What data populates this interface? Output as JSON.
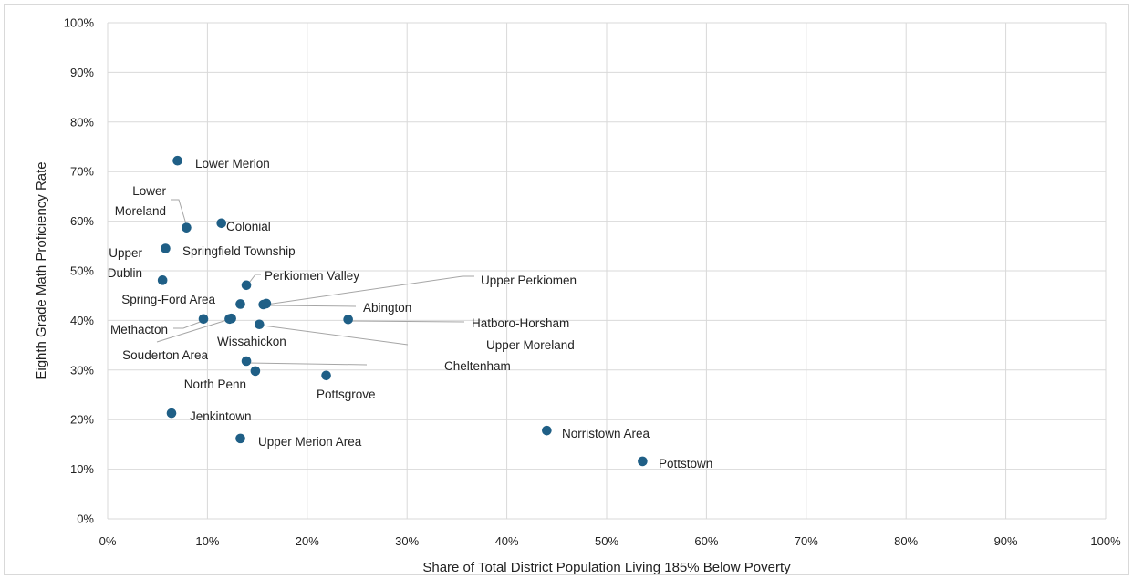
{
  "chart_data": {
    "type": "scatter",
    "xlabel": "Share of Total District Population Living 185% Below Poverty",
    "ylabel": "Eighth Grade Math Proficiency Rate",
    "xlim": [
      0,
      100
    ],
    "ylim": [
      0,
      100
    ],
    "x_ticks": [
      "0%",
      "10%",
      "20%",
      "30%",
      "40%",
      "50%",
      "60%",
      "70%",
      "80%",
      "90%",
      "100%"
    ],
    "y_ticks": [
      "0%",
      "10%",
      "20%",
      "30%",
      "40%",
      "50%",
      "60%",
      "70%",
      "80%",
      "90%",
      "100%"
    ],
    "grid": true,
    "legend": "none",
    "point_color": "#1f5f86",
    "points": [
      {
        "label": "Lower Merion",
        "x": 7.0,
        "y": 72.2
      },
      {
        "label": "Lower Moreland",
        "x": 7.9,
        "y": 58.7
      },
      {
        "label": "Colonial",
        "x": 11.4,
        "y": 59.6
      },
      {
        "label": "Springfield Township",
        "x": 5.8,
        "y": 54.5
      },
      {
        "label": "Upper Dublin",
        "x": 5.5,
        "y": 48.1
      },
      {
        "label": "Perkiomen Valley",
        "x": 13.9,
        "y": 47.1
      },
      {
        "label": "Spring-Ford Area",
        "x": 13.3,
        "y": 43.3
      },
      {
        "label": "Upper Perkiomen",
        "x": 15.6,
        "y": 43.2
      },
      {
        "label": "Abington",
        "x": 15.9,
        "y": 43.4
      },
      {
        "label": "Methacton",
        "x": 9.6,
        "y": 40.3
      },
      {
        "label": "Souderton Area",
        "x": 12.2,
        "y": 40.3
      },
      {
        "label": "Hatboro-Horsham",
        "x": 24.1,
        "y": 40.2
      },
      {
        "label": "Upper Moreland",
        "x": 15.2,
        "y": 39.2
      },
      {
        "label": "Wissahickon",
        "x": 12.4,
        "y": 40.4
      },
      {
        "label": "Cheltenham",
        "x": 13.9,
        "y": 31.8
      },
      {
        "label": "North Penn",
        "x": 14.8,
        "y": 29.8
      },
      {
        "label": "Pottsgrove",
        "x": 21.9,
        "y": 28.9
      },
      {
        "label": "Jenkintown",
        "x": 6.4,
        "y": 21.3
      },
      {
        "label": "Upper Merion Area",
        "x": 13.3,
        "y": 16.2
      },
      {
        "label": "Norristown Area",
        "x": 44.0,
        "y": 17.8
      },
      {
        "label": "Pottstown",
        "x": 53.6,
        "y": 11.6
      }
    ]
  }
}
